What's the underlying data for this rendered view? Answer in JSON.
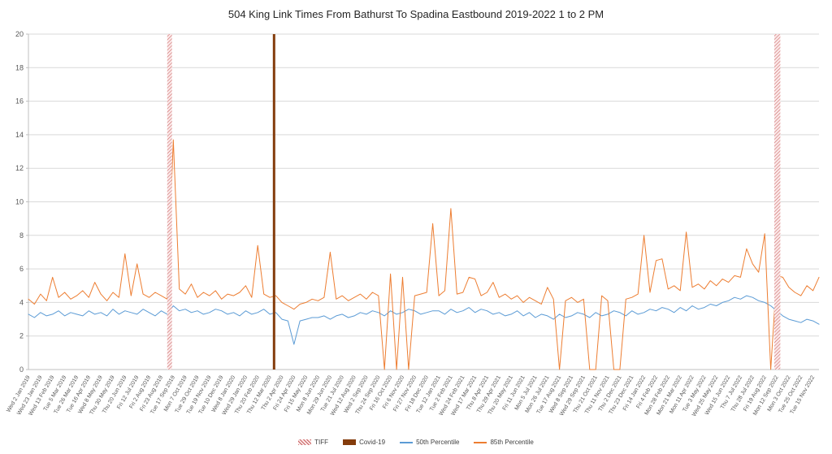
{
  "chart_data": {
    "type": "line",
    "title": "504 King Link Times From Bathurst To Spadina Eastbound 2019-2022 1 to 2 PM",
    "xlabel": "",
    "ylabel": "",
    "ylim": [
      0,
      20
    ],
    "y_ticks": [
      0,
      2,
      4,
      6,
      8,
      10,
      12,
      14,
      16,
      18,
      20
    ],
    "grid": true,
    "legend_position": "bottom",
    "points_per_category": 2,
    "categories": [
      "Wed 2 Jan 2019",
      "Wed 23 Jan 2019",
      "Wed 13 Feb 2019",
      "Tue 5 Mar 2019",
      "Tue 26 Mar 2019",
      "Tue 16 Apr 2019",
      "Wed 8 May 2019",
      "Thu 30 May 2019",
      "Thu 20 Jun 2019",
      "Fri 12 Jul 2019",
      "Fri 2 Aug 2019",
      "Fri 23 Aug 2019",
      "Tue 17 Sep 2019",
      "Mon 7 Oct 2019",
      "Tue 29 Oct 2019",
      "Tue 19 Nov 2019",
      "Tue 10 Dec 2019",
      "Wed 8 Jan 2020",
      "Wed 29 Jan 2020",
      "Thu 20 Feb 2020",
      "Thu 12 Mar 2020",
      "Thu 2 Apr 2020",
      "Fri 24 Apr 2020",
      "Fri 15 May 2020",
      "Mon 8 Jun 2020",
      "Mon 29 Jun 2020",
      "Tue 21 Jul 2020",
      "Wed 12 Aug 2020",
      "Wed 2 Sep 2020",
      "Thu 24 Sep 2020",
      "Fri 16 Oct 2020",
      "Fri 6 Nov 2020",
      "Fri 27 Nov 2020",
      "Fri 18 Dec 2020",
      "Tue 12 Jan 2021",
      "Tue 2 Feb 2021",
      "Wed 24 Feb 2021",
      "Wed 17 Mar 2021",
      "Thu 8 Apr 2021",
      "Thu 29 Apr 2021",
      "Thu 20 May 2021",
      "Fri 11 Jun 2021",
      "Mon 5 Jul 2021",
      "Mon 26 Jul 2021",
      "Tue 17 Aug 2021",
      "Wed 8 Sep 2021",
      "Wed 29 Sep 2021",
      "Thu 21 Oct 2021",
      "Thu 11 Nov 2021",
      "Thu 2 Dec 2021",
      "Thu 23 Dec 2021",
      "Fri 14 Jan 2022",
      "Fri 4 Feb 2022",
      "Mon 28 Feb 2022",
      "Mon 21 Mar 2022",
      "Mon 11 Apr 2022",
      "Tue 3 May 2022",
      "Wed 25 May 2022",
      "Wed 15 Jun 2022",
      "Thu 7 Jul 2022",
      "Thu 28 Jul 2022",
      "Fri 19 Aug 2022",
      "Mon 12 Sep 2022",
      "Mon 3 Oct 2022",
      "Tue 25 Oct 2022",
      "Tue 15 Nov 2022"
    ],
    "series": [
      {
        "name": "50th Percentile",
        "color": "#5B9BD5",
        "values": [
          3.3,
          3.1,
          3.4,
          3.2,
          3.3,
          3.5,
          3.2,
          3.4,
          3.3,
          3.2,
          3.5,
          3.3,
          3.4,
          3.2,
          3.6,
          3.3,
          3.5,
          3.4,
          3.3,
          3.6,
          3.4,
          3.2,
          3.5,
          3.3,
          3.8,
          3.5,
          3.6,
          3.4,
          3.5,
          3.3,
          3.4,
          3.6,
          3.5,
          3.3,
          3.4,
          3.2,
          3.5,
          3.3,
          3.4,
          3.6,
          3.3,
          3.4,
          3.0,
          2.9,
          1.5,
          2.9,
          3.0,
          3.1,
          3.1,
          3.2,
          3.0,
          3.2,
          3.3,
          3.1,
          3.2,
          3.4,
          3.3,
          3.5,
          3.4,
          3.2,
          3.5,
          3.3,
          3.4,
          3.6,
          3.5,
          3.3,
          3.4,
          3.5,
          3.5,
          3.3,
          3.6,
          3.4,
          3.5,
          3.7,
          3.4,
          3.6,
          3.5,
          3.3,
          3.4,
          3.2,
          3.3,
          3.5,
          3.2,
          3.4,
          3.1,
          3.3,
          3.2,
          3.0,
          3.3,
          3.1,
          3.2,
          3.4,
          3.3,
          3.1,
          3.4,
          3.2,
          3.3,
          3.5,
          3.4,
          3.2,
          3.5,
          3.3,
          3.4,
          3.6,
          3.5,
          3.7,
          3.6,
          3.4,
          3.7,
          3.5,
          3.8,
          3.6,
          3.7,
          3.9,
          3.8,
          4.0,
          4.1,
          4.3,
          4.2,
          4.4,
          4.3,
          4.1,
          4.0,
          3.8,
          3.5,
          3.2,
          3.0,
          2.9,
          2.8,
          3.0,
          2.9,
          2.7
        ]
      },
      {
        "name": "85th Percentile",
        "color": "#ED7D31",
        "values": [
          4.2,
          3.9,
          4.5,
          4.1,
          5.5,
          4.3,
          4.6,
          4.2,
          4.4,
          4.7,
          4.3,
          5.2,
          4.5,
          4.1,
          4.6,
          4.3,
          6.9,
          4.4,
          6.3,
          4.5,
          4.3,
          4.6,
          4.4,
          4.2,
          13.7,
          4.8,
          4.5,
          5.1,
          4.3,
          4.6,
          4.4,
          4.7,
          4.2,
          4.5,
          4.4,
          4.6,
          5.0,
          4.3,
          7.4,
          4.5,
          4.3,
          4.4,
          4.0,
          3.8,
          3.6,
          3.9,
          4.0,
          4.2,
          4.1,
          4.3,
          7.0,
          4.2,
          4.4,
          4.1,
          4.3,
          4.5,
          4.2,
          4.6,
          4.4,
          0.0,
          5.7,
          0.0,
          5.5,
          0.0,
          4.4,
          4.5,
          4.6,
          8.7,
          4.4,
          4.7,
          9.6,
          4.5,
          4.6,
          5.5,
          5.4,
          4.4,
          4.6,
          5.2,
          4.3,
          4.5,
          4.2,
          4.4,
          4.0,
          4.3,
          4.1,
          3.9,
          4.9,
          4.2,
          0.0,
          4.1,
          4.3,
          4.0,
          4.2,
          0.0,
          0.0,
          4.4,
          4.1,
          0.0,
          0.0,
          4.2,
          4.3,
          4.5,
          8.0,
          4.6,
          6.5,
          6.6,
          4.8,
          5.0,
          4.7,
          8.2,
          4.9,
          5.1,
          4.8,
          5.3,
          5.0,
          5.4,
          5.2,
          5.6,
          5.5,
          7.2,
          6.3,
          5.8,
          8.1,
          0.0,
          5.6,
          5.5,
          4.9,
          4.6,
          4.4,
          5.0,
          4.7,
          5.5
        ]
      }
    ],
    "annotations": [
      {
        "label": "TIFF",
        "type": "band",
        "pattern": "hatched",
        "color": "#C86060",
        "fill": "#FBE9E9",
        "from_index": 11.5,
        "to_index": 11.9
      },
      {
        "label": "Covid-19",
        "type": "band",
        "pattern": "solid",
        "color": "#843C0C",
        "from_index": 20.25,
        "to_index": 20.45
      },
      {
        "label": "TIFF",
        "type": "band",
        "pattern": "hatched",
        "color": "#C86060",
        "fill": "#FBE9E9",
        "from_index": 61.8,
        "to_index": 62.3
      }
    ],
    "legend": [
      {
        "label": "TIFF",
        "swatch": "hatched",
        "color": "#C86060"
      },
      {
        "label": "Covid-19",
        "swatch": "solid",
        "color": "#843C0C"
      },
      {
        "label": "50th Percentile",
        "swatch": "line",
        "color": "#5B9BD5"
      },
      {
        "label": "85th Percentile",
        "swatch": "line",
        "color": "#ED7D31"
      }
    ],
    "colors": {
      "gridline": "#D9D9D9",
      "axis": "#BFBFBF",
      "tick_label": "#595959"
    }
  }
}
